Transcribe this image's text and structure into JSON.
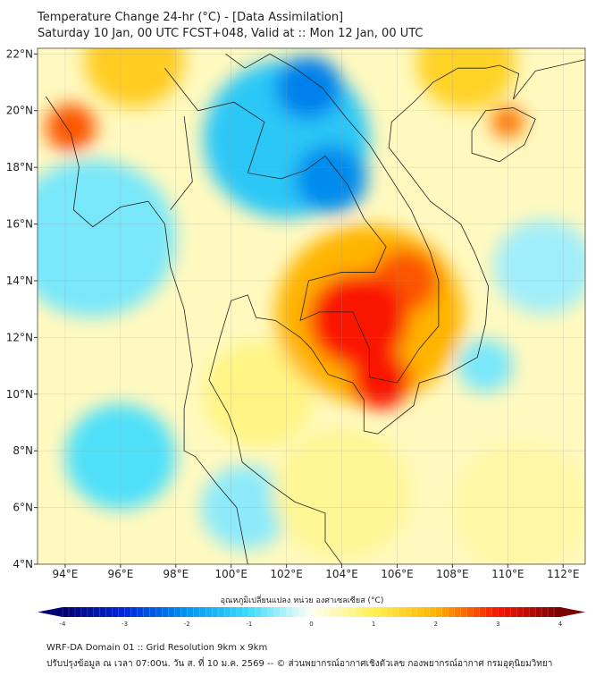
{
  "title": {
    "line1": "Temperature Change 24-hr (°C) - [Data Assimilation]",
    "line2": "Saturday 10 Jan, 00 UTC FCST+048, Valid at :: Mon 12 Jan, 00 UTC"
  },
  "chart_data": {
    "type": "heatmap",
    "title": "Temperature Change 24-hr (°C)",
    "xlim": [
      93,
      112.8
    ],
    "ylim": [
      4,
      22.2
    ],
    "xticks": [
      "94°E",
      "96°E",
      "98°E",
      "100°E",
      "102°E",
      "104°E",
      "106°E",
      "108°E",
      "110°E",
      "112°E"
    ],
    "xtick_values": [
      94,
      96,
      98,
      100,
      102,
      104,
      106,
      108,
      110,
      112
    ],
    "yticks": [
      "4°N",
      "6°N",
      "8°N",
      "10°N",
      "12°N",
      "14°N",
      "16°N",
      "18°N",
      "20°N",
      "22°N"
    ],
    "ytick_values": [
      4,
      6,
      8,
      10,
      12,
      14,
      16,
      18,
      20,
      22
    ],
    "field_features": [
      {
        "lon": 105,
        "lat": 12.8,
        "value": 2,
        "r": 3.4
      },
      {
        "lon": 104.6,
        "lat": 12.6,
        "value": 3,
        "r": 1.8
      },
      {
        "lon": 105.4,
        "lat": 10.5,
        "value": 3,
        "r": 1.1
      },
      {
        "lon": 106.3,
        "lat": 14,
        "value": 2.6,
        "r": 1.2
      },
      {
        "lon": 102,
        "lat": 19,
        "value": -1.3,
        "r": 3
      },
      {
        "lon": 102.8,
        "lat": 20.8,
        "value": -2.2,
        "r": 1.2
      },
      {
        "lon": 103.6,
        "lat": 17.6,
        "value": -2.1,
        "r": 1.3
      },
      {
        "lon": 94.2,
        "lat": 19.4,
        "value": 2.6,
        "r": 0.9
      },
      {
        "lon": 96.5,
        "lat": 21.8,
        "value": 1.6,
        "r": 1.8
      },
      {
        "lon": 108.5,
        "lat": 21.7,
        "value": 1.5,
        "r": 1.8
      },
      {
        "lon": 110,
        "lat": 19.6,
        "value": 2.4,
        "r": 0.6
      },
      {
        "lon": 95,
        "lat": 15.5,
        "value": -0.7,
        "r": 3
      },
      {
        "lon": 96,
        "lat": 7.8,
        "value": -0.9,
        "r": 2
      },
      {
        "lon": 100.5,
        "lat": 6,
        "value": -0.6,
        "r": 1.6
      },
      {
        "lon": 109.2,
        "lat": 11,
        "value": -0.7,
        "r": 1
      },
      {
        "lon": 111.3,
        "lat": 14.5,
        "value": -0.5,
        "r": 1.8
      },
      {
        "lon": 101,
        "lat": 10,
        "value": 0.7,
        "r": 2
      },
      {
        "lon": 104,
        "lat": 6.5,
        "value": 0.6,
        "r": 2.5
      },
      {
        "lon": 110.5,
        "lat": 6,
        "value": 0.5,
        "r": 2.5
      }
    ],
    "colorbar": {
      "label": "อุณหภูมิเปลี่ยนแปลง หน่วย องศาเซลเซียส (°C)",
      "range": [
        -4,
        4
      ],
      "ticks": [
        "-4",
        "-3",
        "-2",
        "-1",
        "0",
        "1",
        "2",
        "3",
        "4"
      ]
    }
  },
  "footer": {
    "line1": "WRF-DA Domain 01 :: Grid Resolution 9km x 9km",
    "line2": "ปรับปรุงข้อมูล ณ เวลา 07:00น. วัน ส. ที่ 10 ม.ค. 2569 -- © ส่วนพยากรณ์อากาศเชิงตัวเลข กองพยากรณ์อากาศ กรมอุตุนิยมวิทยา"
  }
}
